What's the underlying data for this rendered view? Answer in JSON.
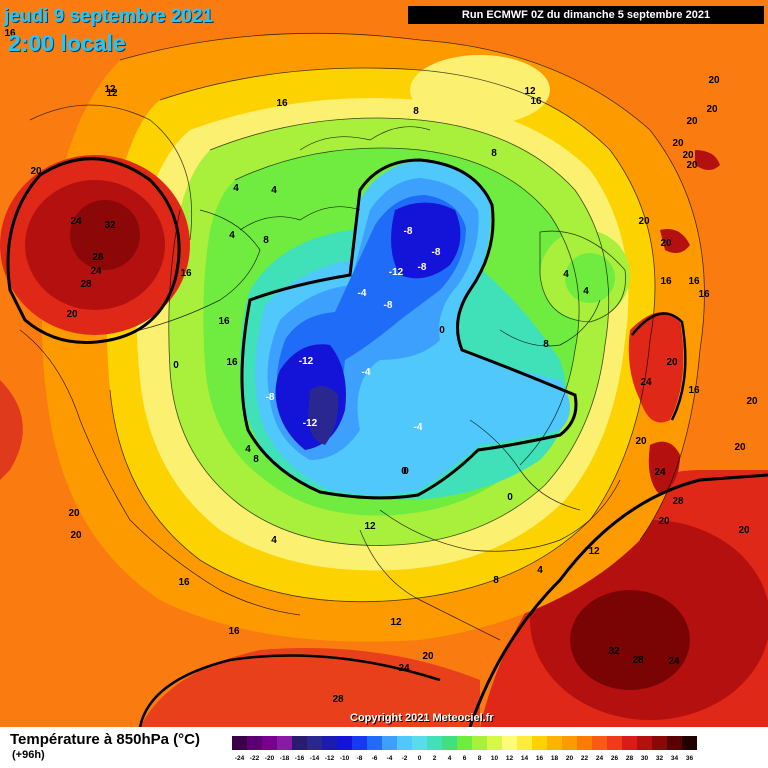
{
  "header": {
    "date": "jeudi 9 septembre 2021",
    "local_time": "2:00 locale",
    "run_info": "Run ECMWF 0Z du dimanche 5 septembre 2021"
  },
  "map": {
    "copyright": "Copyright 2021 Meteociel.fr",
    "isotherm_labels": [
      "16",
      "12",
      "16",
      "12",
      "12",
      "16",
      "8",
      "20",
      "20",
      "20",
      "20",
      "20",
      "20",
      "20",
      "24",
      "32",
      "28",
      "24",
      "28",
      "20",
      "16",
      "4",
      "4",
      "4",
      "8",
      "8",
      "-8",
      "-8",
      "-12",
      "-8",
      "-8",
      "-4",
      "0",
      "-12",
      "-4",
      "-8",
      "-12",
      "0",
      "-4",
      "4",
      "4",
      "8",
      "20",
      "16",
      "16",
      "16",
      "20",
      "24",
      "16",
      "20",
      "20",
      "24",
      "28",
      "20",
      "20",
      "20",
      "20",
      "16",
      "16",
      "12",
      "12",
      "8",
      "12",
      "4",
      "4",
      "32",
      "28",
      "24",
      "24",
      "28",
      "20",
      "20",
      "20",
      "16",
      "16",
      "0",
      "0",
      "0",
      "4",
      "8",
      "4",
      "4"
    ]
  },
  "footer": {
    "title": "Température à 850hPa (°C)",
    "forecast_hour": "(+96h)"
  },
  "legend": {
    "ticks": [
      "-24",
      "-22",
      "-20",
      "-18",
      "-16",
      "-14",
      "-12",
      "-10",
      "-8",
      "-6",
      "-4",
      "-2",
      "0",
      "2",
      "4",
      "6",
      "8",
      "10",
      "12",
      "14",
      "16",
      "18",
      "20",
      "22",
      "24",
      "26",
      "28",
      "30",
      "32",
      "34",
      "36"
    ],
    "colors": [
      "#3a0048",
      "#5a0070",
      "#780090",
      "#8a1aa6",
      "#2a1c6c",
      "#2a2890",
      "#1c1ab0",
      "#1414d8",
      "#1a38f0",
      "#1e6cf8",
      "#3ca0fc",
      "#50c8fc",
      "#58dcec",
      "#40e0b8",
      "#40e080",
      "#70ec40",
      "#a8f03c",
      "#d8f848",
      "#fcfc78",
      "#fcec3c",
      "#fcd200",
      "#fcb400",
      "#fc9a00",
      "#fc7c00",
      "#fa5a14",
      "#f03a1c",
      "#d81c1c",
      "#b41010",
      "#8c0808",
      "#5a0202",
      "#200000"
    ],
    "marker_color": "#000000"
  }
}
